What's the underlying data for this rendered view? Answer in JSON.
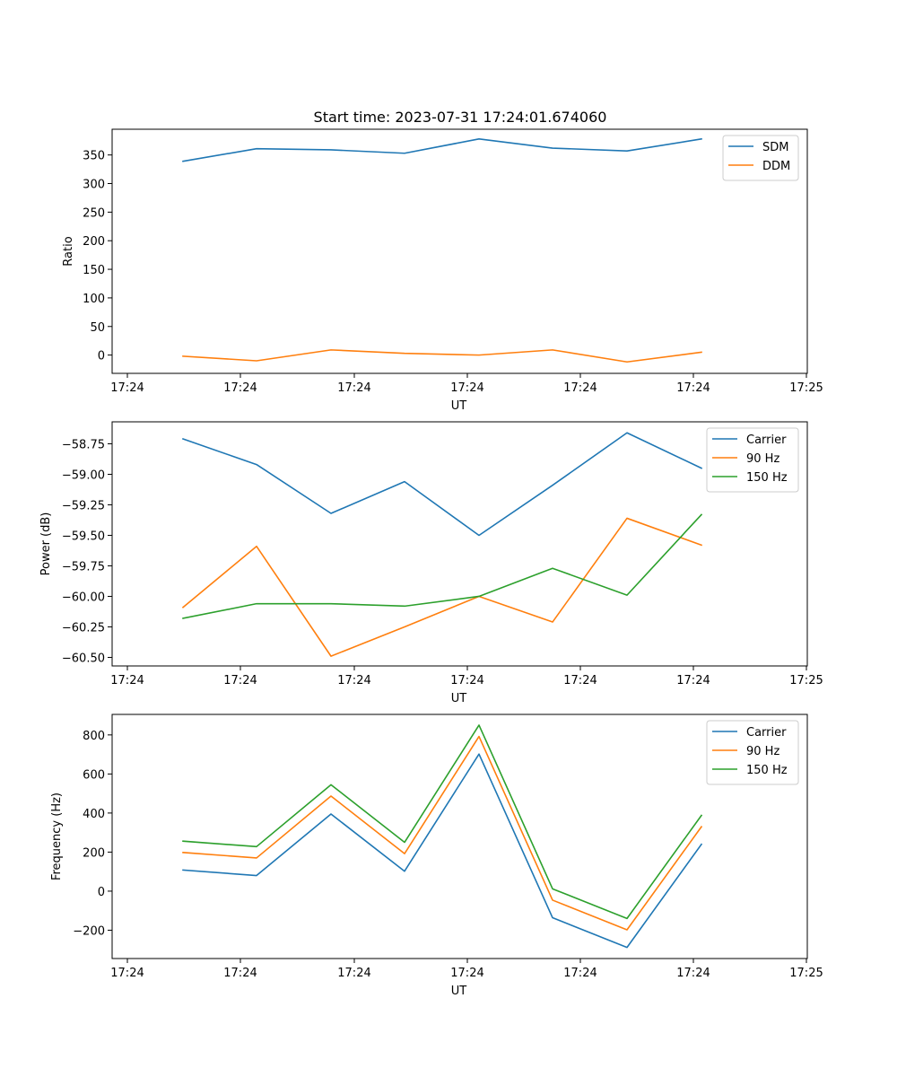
{
  "title": "Start time: 2023-07-31 17:24:01.674060",
  "colors": {
    "blue": "#1f77b4",
    "orange": "#ff7f0e",
    "green": "#2ca02c"
  },
  "chart_data": [
    {
      "type": "line",
      "xlabel": "UT",
      "ylabel": "Ratio",
      "x_ticks": [
        "17:24",
        "17:24",
        "17:24",
        "17:24",
        "17:24",
        "17:24",
        "17:25"
      ],
      "ylim": [
        -32,
        395
      ],
      "y_ticks": [
        "0",
        "50",
        "100",
        "150",
        "200",
        "250",
        "300",
        "350"
      ],
      "y_tick_values": [
        0,
        50,
        100,
        150,
        200,
        250,
        300,
        350
      ],
      "legend_position": "top-right",
      "series": [
        {
          "name": "SDM",
          "color": "#1f77b4",
          "values": [
            339,
            361,
            359,
            353,
            378,
            362,
            357,
            378
          ]
        },
        {
          "name": "DDM",
          "color": "#ff7f0e",
          "values": [
            -2,
            -10,
            9,
            3,
            0,
            9,
            -12,
            5
          ]
        }
      ]
    },
    {
      "type": "line",
      "xlabel": "UT",
      "ylabel": "Power (dB)",
      "x_ticks": [
        "17:24",
        "17:24",
        "17:24",
        "17:24",
        "17:24",
        "17:24",
        "17:25"
      ],
      "ylim": [
        -60.57,
        -58.57
      ],
      "y_ticks": [
        "−58.75",
        "−59.00",
        "−59.25",
        "−59.50",
        "−59.75",
        "−60.00",
        "−60.25",
        "−60.50"
      ],
      "y_tick_values": [
        -58.75,
        -59.0,
        -59.25,
        -59.5,
        -59.75,
        -60.0,
        -60.25,
        -60.5
      ],
      "legend_position": "top-right",
      "series": [
        {
          "name": "Carrier",
          "color": "#1f77b4",
          "values": [
            -58.71,
            -58.92,
            -59.32,
            -59.06,
            -59.5,
            -59.09,
            -58.66,
            -58.95
          ]
        },
        {
          "name": "90 Hz",
          "color": "#ff7f0e",
          "values": [
            -60.09,
            -59.59,
            -60.49,
            -60.25,
            -60.0,
            -60.21,
            -59.36,
            -59.58
          ]
        },
        {
          "name": "150 Hz",
          "color": "#2ca02c",
          "values": [
            -60.18,
            -60.06,
            -60.06,
            -60.08,
            -60.0,
            -59.77,
            -59.99,
            -59.33
          ]
        }
      ]
    },
    {
      "type": "line",
      "xlabel": "UT",
      "ylabel": "Frequency (Hz)",
      "x_ticks": [
        "17:24",
        "17:24",
        "17:24",
        "17:24",
        "17:24",
        "17:24",
        "17:25"
      ],
      "ylim": [
        -345,
        905
      ],
      "y_ticks": [
        "800",
        "600",
        "400",
        "200",
        "0",
        "−200"
      ],
      "y_tick_values": [
        800,
        600,
        400,
        200,
        0,
        -200
      ],
      "legend_position": "top-right",
      "series": [
        {
          "name": "Carrier",
          "color": "#1f77b4",
          "values": [
            108,
            80,
            395,
            102,
            702,
            -136,
            -288,
            240
          ]
        },
        {
          "name": "90 Hz",
          "color": "#ff7f0e",
          "values": [
            198,
            170,
            487,
            192,
            792,
            -46,
            -198,
            330
          ]
        },
        {
          "name": "150 Hz",
          "color": "#2ca02c",
          "values": [
            256,
            228,
            545,
            250,
            850,
            12,
            -140,
            388
          ]
        }
      ]
    }
  ]
}
